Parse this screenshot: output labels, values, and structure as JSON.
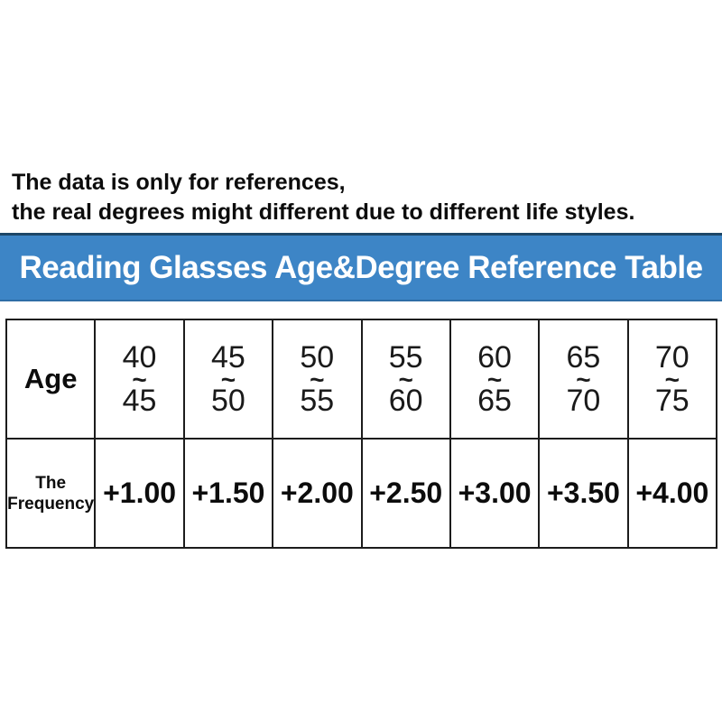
{
  "page": {
    "background_color": "#ffffff"
  },
  "disclaimer": {
    "line1": "The data is only for references,",
    "line2": "the real degrees might different due to different life styles."
  },
  "banner": {
    "title": "Reading Glasses Age&Degree Reference Table",
    "background_color": "#3d85c6",
    "text_color": "#ffffff"
  },
  "table": {
    "age_row_label": "Age",
    "frequency_row_label_line1": "The",
    "frequency_row_label_line2": "Frequency",
    "range_separator": "~",
    "columns": [
      {
        "age_from": "40",
        "age_to": "45",
        "frequency": "+1.00"
      },
      {
        "age_from": "45",
        "age_to": "50",
        "frequency": "+1.50"
      },
      {
        "age_from": "50",
        "age_to": "55",
        "frequency": "+2.00"
      },
      {
        "age_from": "55",
        "age_to": "60",
        "frequency": "+2.50"
      },
      {
        "age_from": "60",
        "age_to": "65",
        "frequency": "+3.00"
      },
      {
        "age_from": "65",
        "age_to": "70",
        "frequency": "+3.50"
      },
      {
        "age_from": "70",
        "age_to": "75",
        "frequency": "+4.00"
      }
    ]
  }
}
